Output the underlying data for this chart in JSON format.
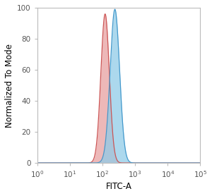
{
  "title": "",
  "xlabel": "FITC-A",
  "ylabel": "Normalized To Mode",
  "xlim_log": [
    0,
    5
  ],
  "ylim": [
    0,
    100
  ],
  "yticks": [
    0,
    20,
    40,
    60,
    80,
    100
  ],
  "red_peak_log": 2.08,
  "red_sigma_log": 0.13,
  "red_height": 96,
  "blue_peak_log": 2.38,
  "blue_sigma_log": 0.145,
  "blue_height": 99,
  "red_fill_color": "#e8a0a0",
  "red_edge_color": "#cc5555",
  "blue_fill_color": "#90cce8",
  "blue_edge_color": "#4499cc",
  "fill_alpha": 0.75,
  "bg_color": "#ffffff",
  "plot_bg_color": "#ffffff",
  "spine_color": "#bbbbbb",
  "tick_color": "#555555",
  "label_fontsize": 8.5,
  "tick_fontsize": 7.5
}
